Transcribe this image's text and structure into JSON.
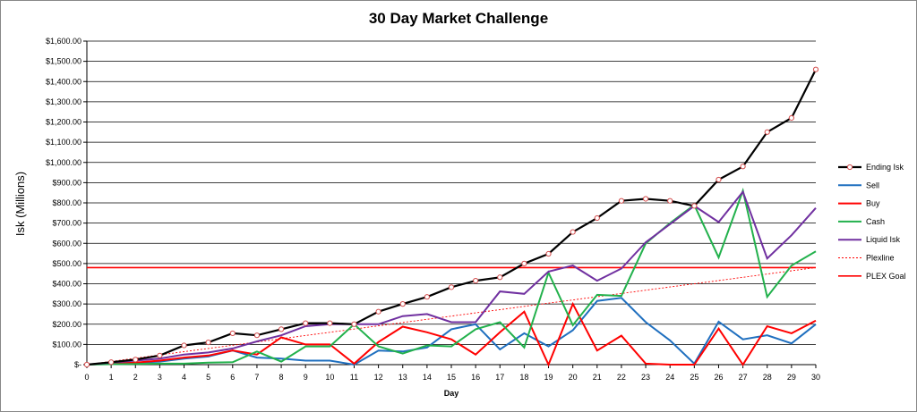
{
  "chart_data": {
    "type": "line",
    "title": "30 Day Market Challenge",
    "xlabel": "Day",
    "ylabel": "Isk (Millions)",
    "x": [
      0,
      1,
      2,
      3,
      4,
      5,
      6,
      7,
      8,
      9,
      10,
      11,
      12,
      13,
      14,
      15,
      16,
      17,
      18,
      19,
      20,
      21,
      22,
      23,
      24,
      25,
      26,
      27,
      28,
      29,
      30
    ],
    "xlim": [
      0,
      30
    ],
    "ylim": [
      0,
      1600
    ],
    "y_ticks": [
      0,
      100,
      200,
      300,
      400,
      500,
      600,
      700,
      800,
      900,
      1000,
      1100,
      1200,
      1300,
      1400,
      1500,
      1600
    ],
    "y_tick_labels": [
      "$-",
      "$100.00",
      "$200.00",
      "$300.00",
      "$400.00",
      "$500.00",
      "$600.00",
      "$700.00",
      "$800.00",
      "$900.00",
      "$1,000.00",
      "$1,100.00",
      "$1,200.00",
      "$1,300.00",
      "$1,400.00",
      "$1,500.00",
      "$1,600.00"
    ],
    "grid": "horizontal",
    "legend_position": "right",
    "series": [
      {
        "name": "Ending Isk",
        "color": "#000000",
        "style": "solid-markers",
        "values": [
          0,
          12,
          25,
          45,
          95,
          110,
          155,
          145,
          175,
          205,
          205,
          200,
          262,
          300,
          335,
          383,
          415,
          432,
          500,
          548,
          656,
          725,
          810,
          820,
          810,
          785,
          915,
          980,
          1150,
          1220,
          1460
        ]
      },
      {
        "name": "Sell",
        "color": "#1f6fbf",
        "style": "solid",
        "values": [
          0,
          5,
          10,
          15,
          30,
          40,
          70,
          35,
          30,
          20,
          20,
          0,
          70,
          65,
          85,
          175,
          200,
          75,
          155,
          90,
          170,
          315,
          330,
          210,
          120,
          5,
          212,
          125,
          145,
          105,
          200
        ]
      },
      {
        "name": "Buy",
        "color": "#ff0000",
        "style": "solid",
        "values": [
          0,
          5,
          10,
          20,
          35,
          45,
          70,
          50,
          135,
          100,
          100,
          5,
          112,
          188,
          160,
          125,
          50,
          160,
          262,
          0,
          300,
          70,
          143,
          5,
          0,
          0,
          178,
          0,
          190,
          155,
          218
        ]
      },
      {
        "name": "Cash",
        "color": "#22b14c",
        "style": "solid",
        "values": [
          0,
          2,
          3,
          5,
          5,
          10,
          12,
          65,
          15,
          90,
          90,
          200,
          90,
          55,
          95,
          90,
          175,
          210,
          85,
          455,
          195,
          345,
          340,
          600,
          700,
          790,
          530,
          860,
          335,
          490,
          560
        ]
      },
      {
        "name": "Liquid Isk",
        "color": "#7030a0",
        "style": "solid",
        "values": [
          0,
          10,
          20,
          30,
          50,
          60,
          80,
          115,
          145,
          190,
          200,
          200,
          200,
          240,
          250,
          210,
          210,
          362,
          350,
          460,
          490,
          415,
          475,
          605,
          695,
          785,
          705,
          855,
          525,
          640,
          775
        ]
      },
      {
        "name": "Plexline",
        "color": "#ff0000",
        "style": "dotted-trend",
        "values": [
          0,
          16,
          32,
          48,
          64,
          80,
          96,
          112,
          128,
          144,
          160,
          176,
          192,
          208,
          224,
          240,
          256,
          272,
          288,
          304,
          320,
          336,
          352,
          368,
          384,
          400,
          416,
          432,
          448,
          464,
          480
        ]
      },
      {
        "name": "PLEX Goal",
        "color": "#ff0000",
        "style": "solid-flat",
        "values": [
          480,
          480,
          480,
          480,
          480,
          480,
          480,
          480,
          480,
          480,
          480,
          480,
          480,
          480,
          480,
          480,
          480,
          480,
          480,
          480,
          480,
          480,
          480,
          480,
          480,
          480,
          480,
          480,
          480,
          480,
          480
        ]
      }
    ]
  }
}
